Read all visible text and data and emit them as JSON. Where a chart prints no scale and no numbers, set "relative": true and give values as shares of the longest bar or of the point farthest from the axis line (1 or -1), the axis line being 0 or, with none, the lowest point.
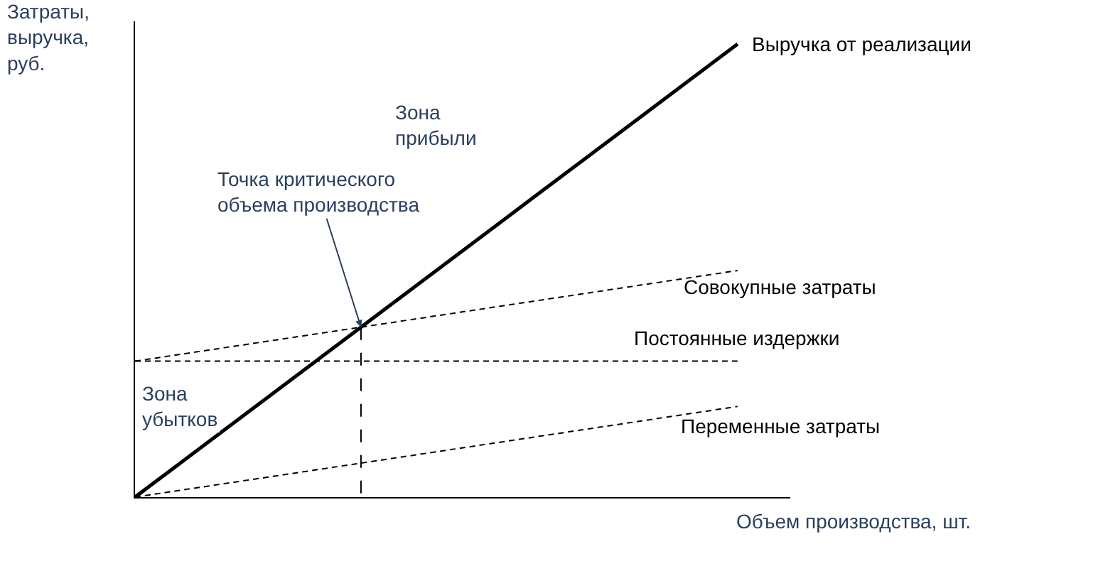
{
  "chart_data": {
    "type": "line",
    "relative": true,
    "xlabel": "Объем производства, шт.",
    "ylabel": "Затраты,\nвыручка,\nруб.",
    "categories": [
      null,
      null,
      null,
      null,
      null,
      null,
      null,
      null,
      null
    ],
    "legend": false,
    "marker": "none",
    "tick_labels": false,
    "series": [
      {
        "name": "Выручка от реализации",
        "color": "#000000",
        "line_style": "solid",
        "values": [
          0,
          0.125,
          0.25,
          0.375,
          0.5,
          0.625,
          0.75,
          0.875,
          1
        ]
      },
      {
        "name": "Совокупные затраты",
        "color": "#000000",
        "line_style": "dashed",
        "values": [
          0.3,
          0.325,
          0.35,
          0.375,
          0.4,
          0.425,
          0.45,
          0.475,
          0.5
        ]
      },
      {
        "name": "Постоянные издержки",
        "color": "#000000",
        "line_style": "dashed",
        "values": [
          0.3,
          0.3,
          0.3,
          0.3,
          0.3,
          0.3,
          0.3,
          0.3,
          0.3
        ]
      },
      {
        "name": "Переменные затраты",
        "color": "#000000",
        "line_style": "dashed",
        "values": [
          0,
          0.025,
          0.05,
          0.075,
          0.1,
          0.125,
          0.15,
          0.175,
          0.2
        ]
      }
    ],
    "annotations": [
      "Точка критического\nобъема производства",
      "Зона\nприбыли",
      "Зона\nубытков"
    ]
  }
}
